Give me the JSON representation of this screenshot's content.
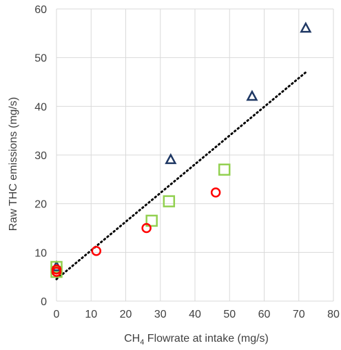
{
  "chart_data": {
    "type": "scatter",
    "title": "",
    "xlabel": {
      "main": "CH",
      "subscript": "4",
      "rest": " Flowrate at intake (mg/s)"
    },
    "ylabel": "Raw THC emissions (mg/s)",
    "xlim": [
      0,
      80
    ],
    "ylim": [
      0,
      60
    ],
    "xticks": [
      0,
      10,
      20,
      30,
      40,
      50,
      60,
      70,
      80
    ],
    "yticks": [
      0,
      10,
      20,
      30,
      40,
      50,
      60
    ],
    "grid": true,
    "legend": "none",
    "series": [
      {
        "marker": "triangle",
        "color": "#1f3864",
        "points": [
          [
            0,
            7.0
          ],
          [
            33,
            29.0
          ],
          [
            56.5,
            42.0
          ],
          [
            72,
            56.0
          ]
        ]
      },
      {
        "marker": "square",
        "color": "#92d050",
        "points": [
          [
            0,
            7.0
          ],
          [
            0,
            6.0
          ],
          [
            27.5,
            16.5
          ],
          [
            32.5,
            20.5
          ],
          [
            48.5,
            27.0
          ]
        ]
      },
      {
        "marker": "circle",
        "color": "#ff0000",
        "points": [
          [
            0,
            6.5
          ],
          [
            0,
            6.0
          ],
          [
            11.5,
            10.3
          ],
          [
            26,
            15.0
          ],
          [
            46,
            22.3
          ]
        ]
      }
    ],
    "trendline": {
      "style": "dotted",
      "color": "#000000",
      "x_range": [
        0,
        72
      ],
      "slope": 0.59,
      "intercept": 4.5
    }
  }
}
